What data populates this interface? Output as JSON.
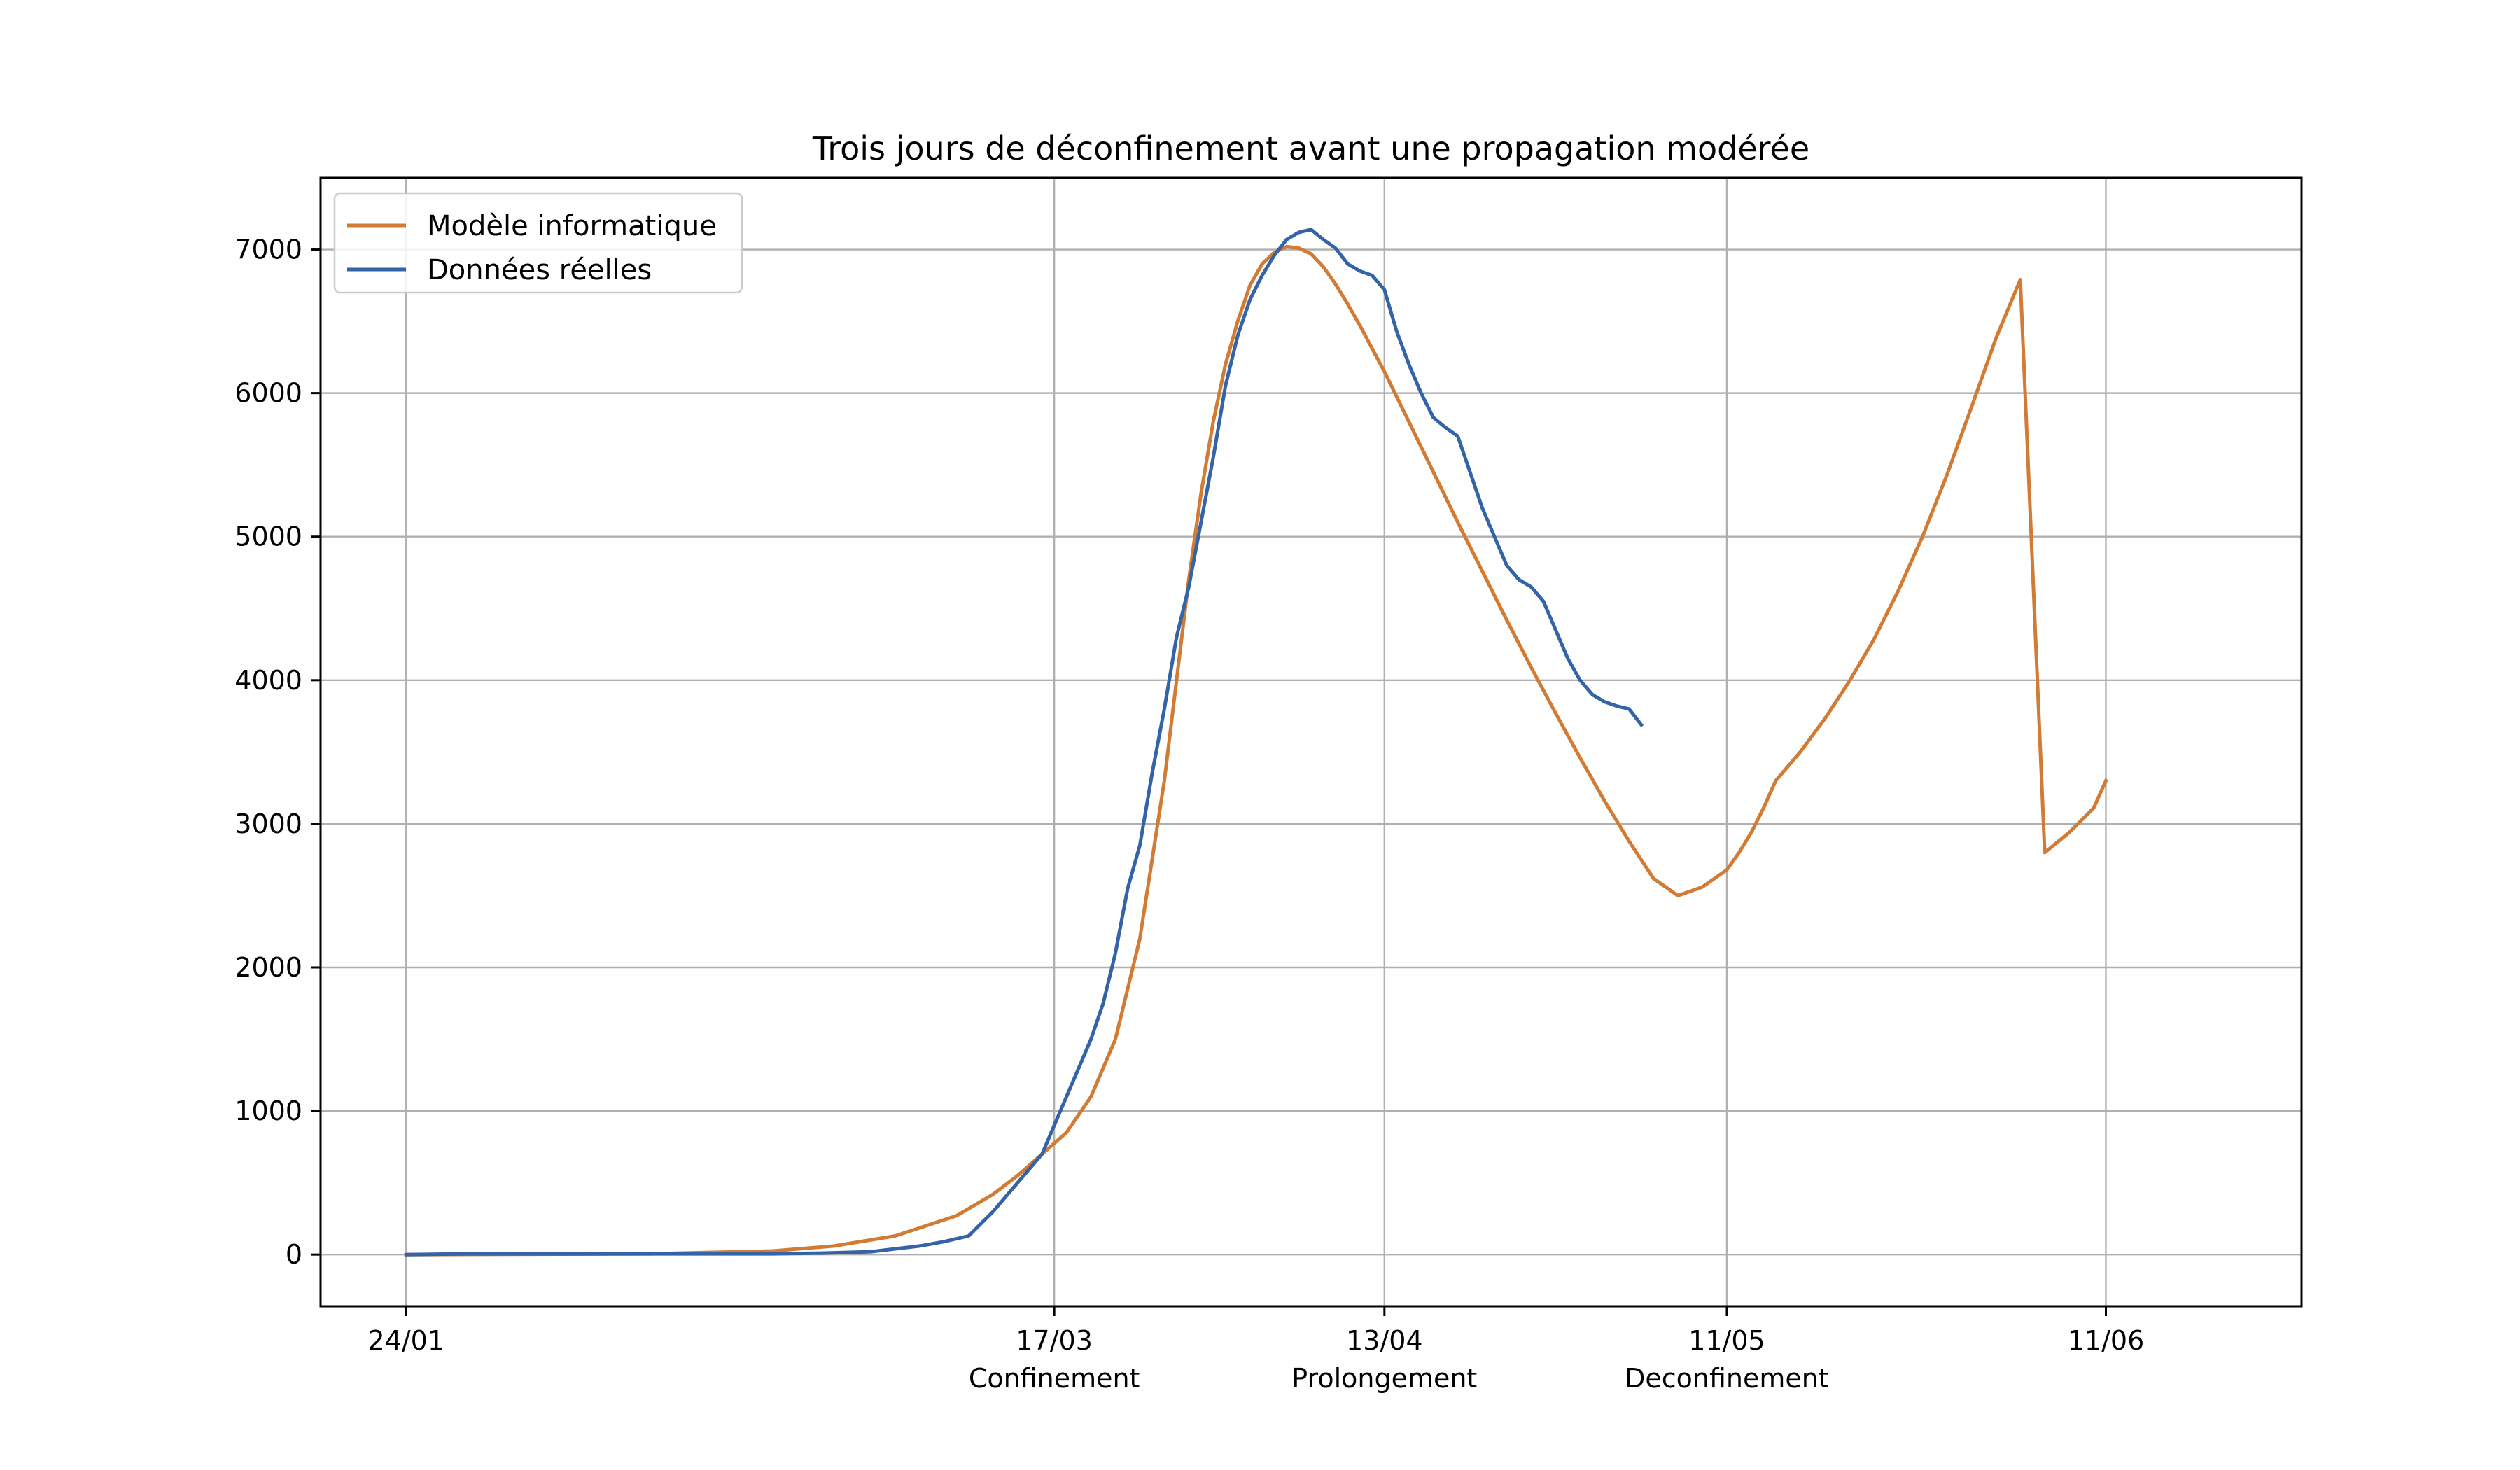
{
  "chart_data": {
    "type": "line",
    "title": "Trois jours de déconfinement avant une propagation modérée",
    "xlabel": "",
    "ylabel": "",
    "ylim": [
      -360,
      7500
    ],
    "xlim": [
      -7,
      155
    ],
    "grid": true,
    "legend_position": "top-left",
    "x_ticks": [
      {
        "x": 0,
        "label": "24/01",
        "sublabel": ""
      },
      {
        "x": 53,
        "label": "17/03",
        "sublabel": "Confinement"
      },
      {
        "x": 80,
        "label": "13/04",
        "sublabel": "Prolongement"
      },
      {
        "x": 108,
        "label": "11/05",
        "sublabel": "Deconfinement"
      },
      {
        "x": 139,
        "label": "11/06",
        "sublabel": ""
      }
    ],
    "y_ticks": [
      0,
      1000,
      2000,
      3000,
      4000,
      5000,
      6000,
      7000
    ],
    "series": [
      {
        "name": "Modèle informatique",
        "color": "#d27b34",
        "x": [
          0,
          20,
          30,
          35,
          40,
          45,
          48,
          50,
          52,
          54,
          56,
          58,
          60,
          62,
          64,
          65,
          66,
          67,
          68,
          69,
          70,
          71,
          72,
          73,
          74,
          75,
          76,
          77,
          78,
          79,
          80,
          82,
          84,
          86,
          88,
          90,
          92,
          94,
          96,
          98,
          100,
          102,
          104,
          106,
          108,
          109,
          110,
          111,
          112,
          114,
          116,
          118,
          120,
          122,
          124,
          126,
          128,
          130,
          132,
          134,
          136,
          138,
          139
        ],
        "y": [
          0,
          5,
          25,
          60,
          130,
          270,
          420,
          550,
          700,
          850,
          1100,
          1500,
          2200,
          3300,
          4700,
          5300,
          5800,
          6200,
          6500,
          6750,
          6900,
          6980,
          7020,
          7010,
          6970,
          6880,
          6760,
          6620,
          6470,
          6310,
          6150,
          5800,
          5450,
          5100,
          4760,
          4420,
          4090,
          3770,
          3460,
          3160,
          2880,
          2620,
          2500,
          2560,
          2680,
          2800,
          2940,
          3110,
          3300,
          3500,
          3730,
          3990,
          4280,
          4620,
          5000,
          5430,
          5900,
          6380,
          6790,
          2800,
          2940,
          3110,
          3300
        ],
        "note_ignore": ""
      },
      {
        "name": "Données réelles",
        "color": "#3563a8",
        "x": [
          0,
          5,
          10,
          15,
          20,
          25,
          30,
          34,
          38,
          40,
          42,
          44,
          46,
          48,
          50,
          52,
          53,
          54,
          55,
          56,
          57,
          58,
          59,
          60,
          61,
          62,
          63,
          64,
          65,
          66,
          67,
          68,
          69,
          70,
          71,
          72,
          73,
          74,
          75,
          76,
          77,
          78,
          79,
          80,
          81,
          82,
          83,
          84,
          85,
          86,
          87,
          88,
          89,
          90,
          91,
          92,
          93,
          94,
          95,
          96,
          97,
          98,
          99,
          100,
          101
        ],
        "y": [
          0,
          5,
          5,
          5,
          5,
          5,
          5,
          10,
          20,
          40,
          60,
          90,
          130,
          300,
          500,
          700,
          900,
          1100,
          1300,
          1500,
          1750,
          2100,
          2550,
          2850,
          3350,
          3800,
          4300,
          4650,
          5100,
          5550,
          6050,
          6400,
          6650,
          6820,
          6960,
          7070,
          7120,
          7140,
          7070,
          7010,
          6900,
          6850,
          6820,
          6720,
          6430,
          6200,
          6000,
          5830,
          5760,
          5700,
          5450,
          5200,
          5000,
          4800,
          4700,
          4650,
          4550,
          4350,
          4150,
          4000,
          3900,
          3850,
          3820,
          3800,
          3690
        ]
      }
    ]
  }
}
